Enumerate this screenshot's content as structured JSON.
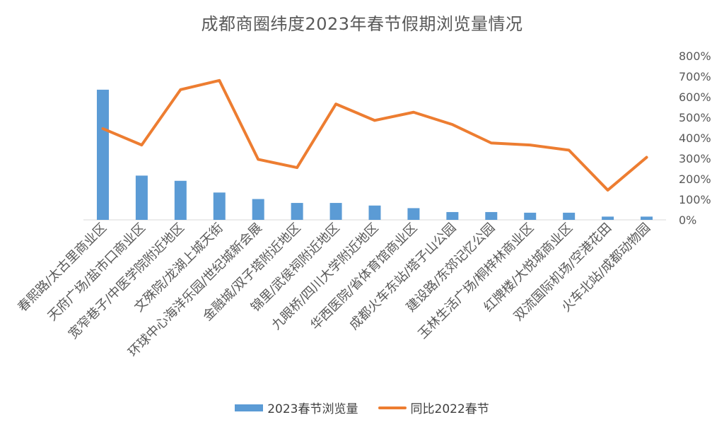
{
  "chart_data": {
    "type": "bar",
    "title": "成都商圈纬度2023年春节假期浏览量情况",
    "categories": [
      "春熙路/太古里商业区",
      "天府广场/盐市口商业区",
      "宽窄巷子/中医学院附近地区",
      "文殊院/龙湖上城天街",
      "环球中心海洋乐园/世纪城新会展",
      "金融城/双子塔附近地区",
      "锦里/武侯祠附近地区",
      "九眼桥/四川大学附近地区",
      "华西医院/省体育馆商业区",
      "成都火车东站/塔子山公园",
      "建设路/东郊记忆公园",
      "玉林生活广场/桐梓林商业区",
      "红牌楼/大悦城商业区",
      "双流国际机场/空港花田",
      "火车北站/成都动物园"
    ],
    "series": [
      {
        "name": "2023春节浏览量",
        "type": "bar",
        "color": "#5B9BD5",
        "values": [
          100,
          34,
          30,
          21,
          16,
          13,
          13,
          11,
          9,
          6,
          6,
          5.5,
          5.5,
          2.5,
          2.5
        ]
      },
      {
        "name": "同比2022春节",
        "type": "line",
        "axis": "right",
        "color": "#ED7D31",
        "values": [
          445,
          365,
          635,
          680,
          295,
          255,
          565,
          485,
          525,
          465,
          375,
          365,
          340,
          145,
          305
        ]
      }
    ],
    "y2_ticks": [
      "800%",
      "700%",
      "600%",
      "500%",
      "400%",
      "300%",
      "200%",
      "100%",
      "0%"
    ],
    "y2lim": [
      0,
      800
    ],
    "ylim": [
      0,
      126
    ],
    "legend_position": "bottom",
    "grid": false
  }
}
